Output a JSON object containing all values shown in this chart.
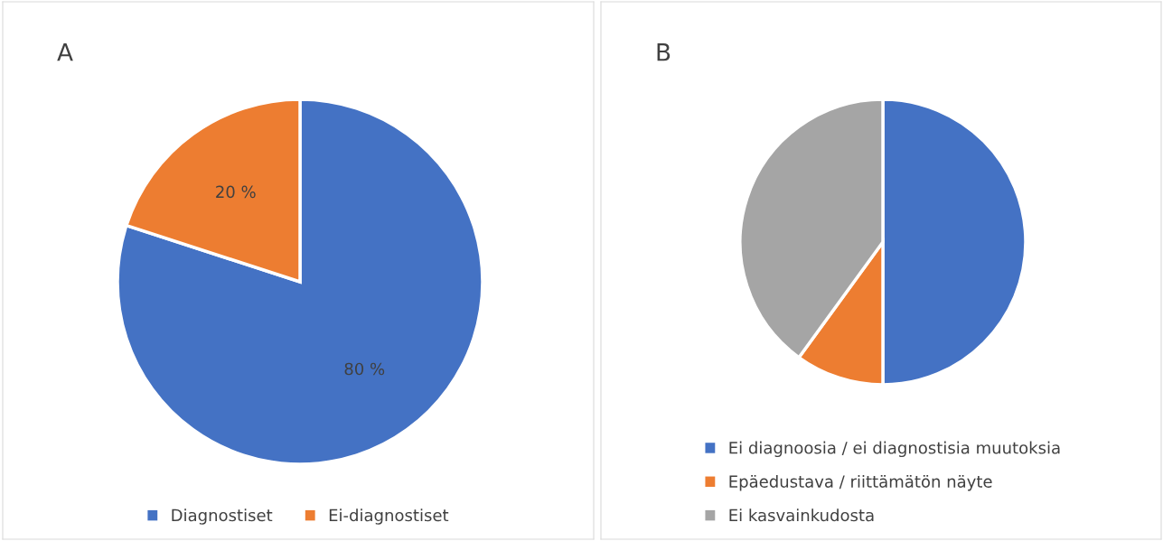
{
  "chart_data": [
    {
      "type": "pie",
      "title": "A",
      "categories": [
        "Diagnostiset",
        "Ei-diagnostiset"
      ],
      "values": [
        80,
        20
      ],
      "colors": [
        "#4472c4",
        "#ed7d31"
      ],
      "value_labels": [
        "80 %",
        "20 %"
      ],
      "legend": "bottom"
    },
    {
      "type": "pie",
      "title": "B",
      "categories": [
        "Ei diagnoosia / ei diagnostisia muutoksia",
        "Epäedustava / riittämätön näyte",
        "Ei kasvainkudosta"
      ],
      "values": [
        50,
        10,
        40
      ],
      "colors": [
        "#4472c4",
        "#ed7d31",
        "#a5a5a5"
      ],
      "legend": "bottom left"
    }
  ]
}
